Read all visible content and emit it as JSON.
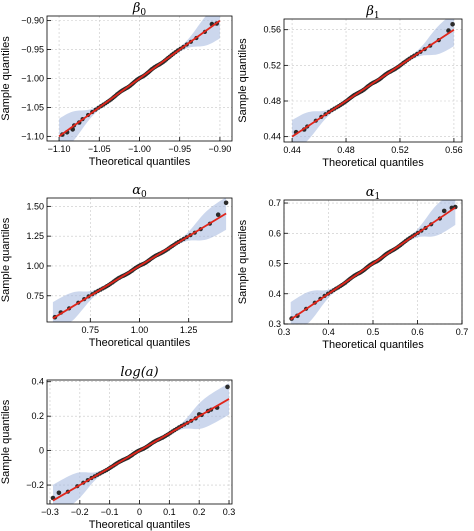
{
  "chart_data": [
    {
      "type": "scatter",
      "title": "β0",
      "xlabel": "Theoretical quantiles",
      "ylabel": "Sample quantiles",
      "xlim": [
        -1.115,
        -0.885
      ],
      "ylim": [
        -1.108,
        -0.892
      ],
      "xticks": [
        -1.1,
        -1.05,
        -1.0,
        -0.95,
        -0.9
      ],
      "xtick_labels": [
        "−1.10",
        "−1.05",
        "−1.00",
        "−0.95",
        "−0.90"
      ],
      "yticks": [
        -1.1,
        -1.05,
        -1.0,
        -0.95,
        -0.9
      ],
      "ytick_labels": [
        "−1.10",
        "−1.05",
        "−1.00",
        "−0.95",
        "−0.90"
      ],
      "grid": true,
      "points": [
        [
          -1.096,
          -1.097
        ],
        [
          -1.09,
          -1.093
        ],
        [
          -1.083,
          -1.088
        ],
        [
          -1.075,
          -1.076
        ],
        [
          -0.91,
          -0.906
        ],
        [
          -0.904,
          -0.905
        ]
      ],
      "line": [
        [
          -1.1,
          -1.1
        ],
        [
          -0.9,
          -0.9
        ]
      ],
      "band_center": -1.0,
      "band_width": 0.045
    },
    {
      "type": "scatter",
      "title": "β1",
      "xlabel": "Theoretical quantiles",
      "ylabel": "Sample quantiles",
      "xlim": [
        0.434,
        0.566
      ],
      "ylim": [
        0.434,
        0.572
      ],
      "xticks": [
        0.44,
        0.48,
        0.52,
        0.56
      ],
      "xtick_labels": [
        "0.44",
        "0.48",
        "0.52",
        "0.56"
      ],
      "yticks": [
        0.44,
        0.48,
        0.52,
        0.56
      ],
      "ytick_labels": [
        "0.44",
        "0.48",
        "0.52",
        "0.56"
      ],
      "grid": true,
      "points": [
        [
          0.443,
          0.445
        ],
        [
          0.449,
          0.448
        ],
        [
          0.556,
          0.559
        ],
        [
          0.559,
          0.566
        ]
      ],
      "line": [
        [
          0.44,
          0.44
        ],
        [
          0.56,
          0.56
        ]
      ],
      "band_center": 0.5,
      "band_width": 0.026
    },
    {
      "type": "scatter",
      "title": "α0",
      "xlabel": "Theoretical quantiles",
      "ylabel": "Sample quantiles",
      "xlim": [
        0.53,
        1.47
      ],
      "ylim": [
        0.53,
        1.57
      ],
      "xticks": [
        0.75,
        1.0,
        1.25
      ],
      "xtick_labels": [
        "0.75",
        "1.00",
        "1.25"
      ],
      "yticks": [
        0.75,
        1.0,
        1.25,
        1.5
      ],
      "ytick_labels": [
        "0.75",
        "1.00",
        "1.25",
        "1.50"
      ],
      "grid": true,
      "points": [
        [
          0.57,
          0.57
        ],
        [
          0.6,
          0.61
        ],
        [
          1.4,
          1.43
        ],
        [
          1.44,
          1.53
        ]
      ],
      "line": [
        [
          0.56,
          0.56
        ],
        [
          1.44,
          1.44
        ]
      ],
      "band_center": 1.0,
      "band_width": 0.18
    },
    {
      "type": "scatter",
      "title": "α1",
      "xlabel": "Theoretical quantiles",
      "ylabel": "Sample quantiles",
      "xlim": [
        0.3,
        0.7
      ],
      "ylim": [
        0.3,
        0.71
      ],
      "xticks": [
        0.3,
        0.4,
        0.5,
        0.6,
        0.7
      ],
      "xtick_labels": [
        "0.3",
        "0.4",
        "0.5",
        "0.6",
        "0.7"
      ],
      "yticks": [
        0.3,
        0.4,
        0.5,
        0.6,
        0.7
      ],
      "ytick_labels": [
        "0.3",
        "0.4",
        "0.5",
        "0.6",
        "0.7"
      ],
      "grid": true,
      "points": [
        [
          0.317,
          0.318
        ],
        [
          0.33,
          0.327
        ],
        [
          0.66,
          0.674
        ],
        [
          0.677,
          0.684
        ],
        [
          0.685,
          0.687
        ]
      ],
      "line": [
        [
          0.315,
          0.315
        ],
        [
          0.685,
          0.685
        ]
      ],
      "band_center": 0.5,
      "band_width": 0.075
    },
    {
      "type": "scatter",
      "title": "log(a)",
      "xlabel": "Theoretical quantiles",
      "ylabel": "Sample quantiles",
      "xlim": [
        -0.31,
        0.31
      ],
      "ylim": [
        -0.31,
        0.41
      ],
      "xticks": [
        -0.3,
        -0.2,
        -0.1,
        0.0,
        0.1,
        0.2,
        0.3
      ],
      "xtick_labels": [
        "−0.3",
        "−0.2",
        "−0.1",
        "0",
        "0.1",
        "0.2",
        "0.3"
      ],
      "yticks": [
        -0.2,
        0.0,
        0.2,
        0.4
      ],
      "ytick_labels": [
        "−0.2",
        "0",
        "0.2",
        "0.4"
      ],
      "grid": true,
      "points": [
        [
          -0.29,
          -0.275
        ],
        [
          -0.27,
          -0.245
        ],
        [
          0.2,
          0.21
        ],
        [
          0.23,
          0.23
        ],
        [
          0.26,
          0.25
        ],
        [
          0.295,
          0.37
        ]
      ],
      "line": [
        [
          -0.29,
          -0.29
        ],
        [
          0.3,
          0.3
        ]
      ],
      "band_center": 0.0,
      "band_width": 0.11
    }
  ]
}
